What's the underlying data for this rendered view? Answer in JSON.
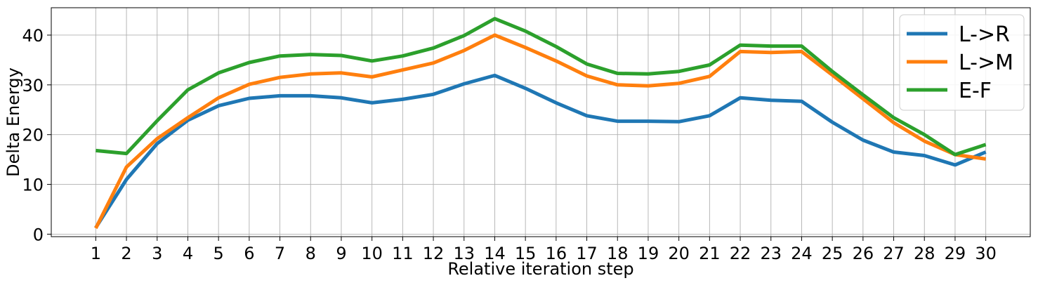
{
  "chart_data": {
    "type": "line",
    "title": "",
    "xlabel": "Relative iteration step",
    "ylabel": "Delta Energy",
    "x": [
      1,
      2,
      3,
      4,
      5,
      6,
      7,
      8,
      9,
      10,
      11,
      12,
      13,
      14,
      15,
      16,
      17,
      18,
      19,
      20,
      21,
      22,
      23,
      24,
      25,
      26,
      27,
      28,
      29,
      30
    ],
    "x_tick_labels": [
      "1",
      "2",
      "3",
      "4",
      "5",
      "6",
      "7",
      "8",
      "9",
      "10",
      "11",
      "12",
      "13",
      "14",
      "15",
      "16",
      "17",
      "18",
      "19",
      "20",
      "21",
      "22",
      "23",
      "24",
      "25",
      "26",
      "27",
      "28",
      "29",
      "30"
    ],
    "y_ticks": [
      0,
      10,
      20,
      30,
      40
    ],
    "xlim": [
      -0.45,
      31.45
    ],
    "ylim": [
      -0.5,
      45.5
    ],
    "grid": true,
    "legend_position": "top-right",
    "series": [
      {
        "name": "L->R",
        "color": "#1f77b4",
        "values": [
          1.3,
          11.0,
          18.2,
          22.9,
          25.8,
          27.3,
          27.8,
          27.8,
          27.4,
          26.4,
          27.1,
          28.1,
          30.2,
          31.9,
          29.3,
          26.4,
          23.8,
          22.7,
          22.7,
          22.6,
          23.8,
          27.4,
          26.9,
          26.7,
          22.5,
          18.9,
          16.5,
          15.8,
          13.9,
          16.5
        ]
      },
      {
        "name": "L->M",
        "color": "#ff7f0e",
        "values": [
          1.2,
          13.5,
          19.2,
          23.4,
          27.4,
          30.1,
          31.5,
          32.2,
          32.4,
          31.6,
          33.0,
          34.4,
          36.9,
          40.0,
          37.5,
          34.8,
          31.8,
          30.0,
          29.8,
          30.3,
          31.7,
          36.7,
          36.5,
          36.7,
          32.0,
          27.2,
          22.4,
          18.7,
          16.0,
          15.1
        ]
      },
      {
        "name": "E-F",
        "color": "#2ca02c",
        "values": [
          16.8,
          16.2,
          22.8,
          29.0,
          32.4,
          34.5,
          35.8,
          36.1,
          35.9,
          34.8,
          35.8,
          37.4,
          39.9,
          43.3,
          40.8,
          37.7,
          34.2,
          32.3,
          32.2,
          32.7,
          34.0,
          38.0,
          37.8,
          37.8,
          32.7,
          28.0,
          23.4,
          20.0,
          16.0,
          18.0
        ]
      }
    ]
  }
}
